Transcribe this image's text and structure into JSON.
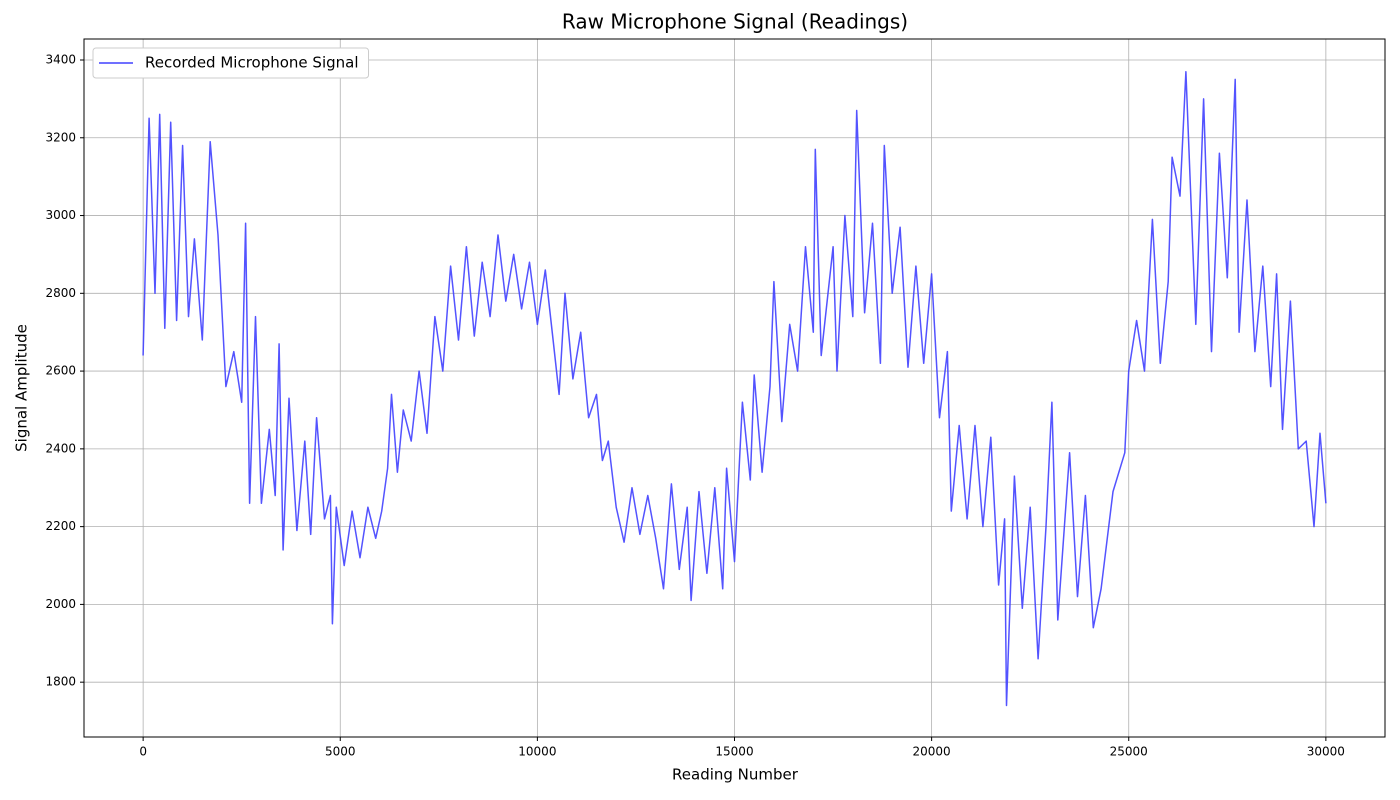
{
  "chart_data": {
    "type": "line",
    "title": "Raw Microphone Signal (Readings)",
    "x_label": "Reading Number",
    "y_label": "Signal Amplitude",
    "x": [
      0,
      150,
      300,
      420,
      550,
      700,
      850,
      1000,
      1150,
      1300,
      1500,
      1700,
      1900,
      2100,
      2300,
      2500,
      2600,
      2700,
      2850,
      3000,
      3200,
      3350,
      3450,
      3550,
      3700,
      3900,
      4100,
      4250,
      4400,
      4600,
      4750,
      4800,
      4900,
      5100,
      5300,
      5500,
      5700,
      5900,
      6050,
      6200,
      6300,
      6450,
      6600,
      6800,
      7000,
      7200,
      7400,
      7600,
      7800,
      8000,
      8200,
      8400,
      8600,
      8800,
      9000,
      9200,
      9400,
      9600,
      9800,
      10000,
      10200,
      10400,
      10550,
      10700,
      10900,
      11100,
      11300,
      11500,
      11650,
      11800,
      12000,
      12200,
      12400,
      12600,
      12800,
      13000,
      13200,
      13400,
      13600,
      13800,
      13900,
      14100,
      14300,
      14500,
      14700,
      14800,
      15000,
      15200,
      15400,
      15500,
      15700,
      15900,
      16000,
      16200,
      16400,
      16600,
      16800,
      17000,
      17050,
      17200,
      17500,
      17600,
      17800,
      18000,
      18100,
      18300,
      18500,
      18700,
      18800,
      19000,
      19200,
      19400,
      19600,
      19800,
      20000,
      20200,
      20400,
      20500,
      20700,
      20900,
      21100,
      21300,
      21500,
      21700,
      21850,
      21900,
      22100,
      22300,
      22500,
      22700,
      22900,
      23050,
      23200,
      23500,
      23700,
      23900,
      24100,
      24300,
      24600,
      24900,
      25000,
      25200,
      25400,
      25600,
      25800,
      26000,
      26100,
      26300,
      26450,
      26700,
      26900,
      27100,
      27300,
      27500,
      27700,
      27800,
      28000,
      28200,
      28400,
      28600,
      28750,
      28900,
      29100,
      29300,
      29500,
      29700,
      29850,
      30000
    ],
    "series": [
      {
        "name": "Recorded Microphone Signal",
        "color": "#4040ff",
        "values": [
          2640,
          3250,
          2800,
          3260,
          2710,
          3240,
          2730,
          3180,
          2740,
          2940,
          2680,
          3190,
          2950,
          2560,
          2650,
          2520,
          2980,
          2260,
          2740,
          2260,
          2450,
          2280,
          2670,
          2140,
          2530,
          2190,
          2420,
          2180,
          2480,
          2220,
          2280,
          1950,
          2250,
          2100,
          2240,
          2120,
          2250,
          2170,
          2240,
          2350,
          2540,
          2340,
          2500,
          2420,
          2600,
          2440,
          2740,
          2600,
          2870,
          2680,
          2920,
          2690,
          2880,
          2740,
          2950,
          2780,
          2900,
          2760,
          2880,
          2720,
          2860,
          2680,
          2540,
          2800,
          2580,
          2700,
          2480,
          2540,
          2370,
          2420,
          2250,
          2160,
          2300,
          2180,
          2280,
          2170,
          2040,
          2310,
          2090,
          2250,
          2010,
          2290,
          2080,
          2300,
          2040,
          2350,
          2110,
          2520,
          2320,
          2590,
          2340,
          2560,
          2830,
          2470,
          2720,
          2600,
          2920,
          2700,
          3170,
          2640,
          2920,
          2600,
          3000,
          2740,
          3270,
          2750,
          2980,
          2620,
          3180,
          2800,
          2970,
          2610,
          2870,
          2620,
          2850,
          2480,
          2650,
          2240,
          2460,
          2220,
          2460,
          2200,
          2430,
          2050,
          2220,
          1740,
          2330,
          1990,
          2250,
          1860,
          2200,
          2520,
          1960,
          2390,
          2020,
          2280,
          1940,
          2040,
          2290,
          2390,
          2600,
          2730,
          2600,
          2990,
          2620,
          2830,
          3150,
          3050,
          3370,
          2720,
          3300,
          2650,
          3160,
          2840,
          3350,
          2700,
          3040,
          2650,
          2870,
          2560,
          2850,
          2450,
          2780,
          2400,
          2420,
          2200,
          2440,
          2260
        ]
      }
    ],
    "xlim": [
      -1500,
      31500
    ],
    "ylim": [
      1659,
      3454
    ],
    "xticks": [
      0,
      5000,
      10000,
      15000,
      20000,
      25000,
      30000
    ],
    "yticks": [
      1800,
      2000,
      2200,
      2400,
      2600,
      2800,
      3000,
      3200,
      3400
    ],
    "grid": true,
    "legend": "upper left"
  }
}
